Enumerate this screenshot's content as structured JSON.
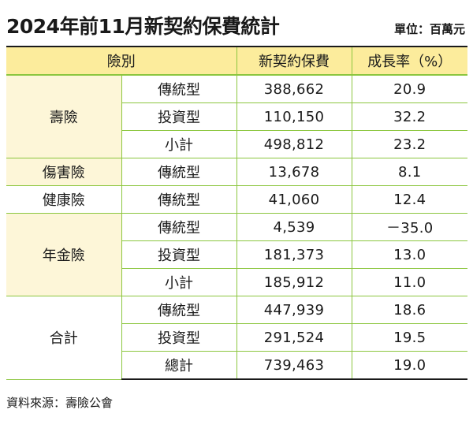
{
  "title": "2024年前11月新契約保費統計",
  "unit_label": "單位：百萬元",
  "headers": [
    "險別",
    "新契約保費",
    "成長率（%）"
  ],
  "groups": [
    {
      "name": "壽險",
      "rows": [
        {
          "type": "傳統型",
          "premium": "388,662",
          "growth": "20.9"
        },
        {
          "type": "投資型",
          "premium": "110,150",
          "growth": "32.2"
        },
        {
          "type": "小計",
          "premium": "498,812",
          "growth": "23.2"
        }
      ]
    },
    {
      "name": "傷害險",
      "rows": [
        {
          "type": "傳統型",
          "premium": "13,678",
          "growth": "8.1"
        }
      ]
    },
    {
      "name": "健康險",
      "rows": [
        {
          "type": "傳統型",
          "premium": "41,060",
          "growth": "12.4"
        }
      ]
    },
    {
      "name": "年金險",
      "rows": [
        {
          "type": "傳統型",
          "premium": "4,539",
          "growth": "－35.0"
        },
        {
          "type": "投資型",
          "premium": "181,373",
          "growth": "13.0"
        },
        {
          "type": "小計",
          "premium": "185,912",
          "growth": "11.0"
        }
      ]
    },
    {
      "name": "合計",
      "rows": [
        {
          "type": "傳統型",
          "premium": "447,939",
          "growth": "18.6"
        },
        {
          "type": "投資型",
          "premium": "291,524",
          "growth": "19.5"
        },
        {
          "type": "總計",
          "premium": "739,463",
          "growth": "19.0"
        }
      ]
    }
  ],
  "source": "資料來源：壽險公會"
}
